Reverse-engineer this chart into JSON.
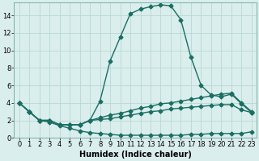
{
  "xlabel": "Humidex (Indice chaleur)",
  "background_color": "#daeeed",
  "grid_color": "#b8d8d5",
  "line_color": "#1a6e62",
  "xlim": [
    -0.5,
    23.5
  ],
  "ylim": [
    0,
    15.5
  ],
  "x_ticks": [
    0,
    1,
    2,
    3,
    4,
    5,
    6,
    7,
    8,
    9,
    10,
    11,
    12,
    13,
    14,
    15,
    16,
    17,
    18,
    19,
    20,
    21,
    22,
    23
  ],
  "y_ticks": [
    0,
    2,
    4,
    6,
    8,
    10,
    12,
    14
  ],
  "line_max_x": [
    0,
    1,
    2,
    3,
    4,
    5,
    6,
    7,
    8,
    9,
    10,
    11,
    12,
    13,
    14,
    15,
    16,
    17,
    18,
    19,
    20,
    21,
    22,
    23
  ],
  "line_max_y": [
    4.0,
    3.0,
    2.0,
    2.0,
    1.5,
    1.5,
    1.5,
    2.0,
    4.2,
    8.8,
    11.5,
    14.2,
    14.7,
    15.0,
    15.2,
    15.1,
    13.5,
    9.2,
    6.0,
    4.9,
    4.7,
    5.0,
    3.9,
    2.9
  ],
  "line_avg_x": [
    0,
    1,
    2,
    3,
    4,
    5,
    6,
    7,
    8,
    9,
    10,
    11,
    12,
    13,
    14,
    15,
    16,
    17,
    18,
    19,
    20,
    21,
    22,
    23
  ],
  "line_avg_y": [
    4.0,
    3.0,
    2.0,
    2.0,
    1.5,
    1.5,
    1.5,
    2.0,
    2.3,
    2.6,
    2.8,
    3.1,
    3.4,
    3.6,
    3.9,
    4.0,
    4.2,
    4.4,
    4.6,
    4.8,
    5.0,
    5.1,
    4.0,
    3.0
  ],
  "line_med_x": [
    0,
    1,
    2,
    3,
    4,
    5,
    6,
    7,
    8,
    9,
    10,
    11,
    12,
    13,
    14,
    15,
    16,
    17,
    18,
    19,
    20,
    21,
    22,
    23
  ],
  "line_med_y": [
    4.0,
    3.0,
    2.0,
    2.0,
    1.5,
    1.5,
    1.5,
    2.0,
    2.1,
    2.2,
    2.4,
    2.6,
    2.8,
    3.0,
    3.1,
    3.3,
    3.4,
    3.5,
    3.6,
    3.7,
    3.8,
    3.8,
    3.2,
    2.9
  ],
  "line_min_x": [
    0,
    1,
    2,
    3,
    4,
    5,
    6,
    7,
    8,
    9,
    10,
    11,
    12,
    13,
    14,
    15,
    16,
    17,
    18,
    19,
    20,
    21,
    22,
    23
  ],
  "line_min_y": [
    4.0,
    3.0,
    2.0,
    1.8,
    1.4,
    1.1,
    0.8,
    0.6,
    0.5,
    0.4,
    0.3,
    0.3,
    0.3,
    0.3,
    0.3,
    0.3,
    0.3,
    0.4,
    0.4,
    0.5,
    0.5,
    0.5,
    0.5,
    0.7
  ],
  "marker": "D",
  "markersize": 2.5,
  "linewidth": 1.0,
  "fontsize_tick": 6,
  "fontsize_xlabel": 7
}
